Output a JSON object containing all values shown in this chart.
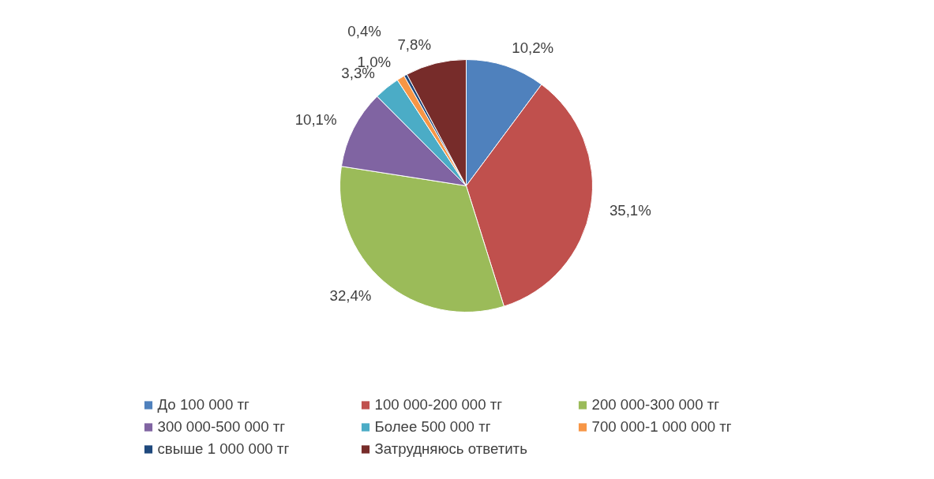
{
  "chart_data": {
    "type": "pie",
    "categories": [
      "До 100 000 тг",
      "100 000-200 000 тг",
      "200 000-300 000 тг",
      "300 000-500 000 тг",
      "Более 500 000 тг",
      "700 000-1 000 000 тг",
      "свыше 1 000 000 тг",
      "Затрудняюсь ответить"
    ],
    "values": [
      10.2,
      35.1,
      32.4,
      10.1,
      3.3,
      1.0,
      0.4,
      7.8
    ],
    "colors": [
      "#4f81bd",
      "#c0504d",
      "#9bbb59",
      "#8064a2",
      "#4bacc6",
      "#f79646",
      "#1f497d",
      "#772c2a"
    ],
    "value_labels": [
      "10,2%",
      "35,1%",
      "32,4%",
      "10,1%",
      "3,3%",
      "1,0%",
      "0,4%",
      "7,8%"
    ],
    "legend": "bottom"
  }
}
